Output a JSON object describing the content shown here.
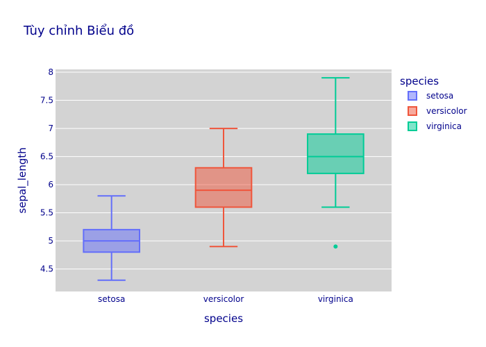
{
  "chart_data": {
    "type": "box",
    "title": "Tùy chỉnh Biểu đồ",
    "xlabel": "species",
    "ylabel": "sepal_length",
    "categories": [
      "setosa",
      "versicolor",
      "virginica"
    ],
    "ylim": [
      4.1,
      8.05
    ],
    "yticks": [
      4.5,
      5,
      5.5,
      6,
      6.5,
      7,
      7.5,
      8
    ],
    "ytick_labels": [
      "4.5",
      "5",
      "5.5",
      "6",
      "6.5",
      "7",
      "7.5",
      "8"
    ],
    "grid": true,
    "legend": {
      "title": "species",
      "placement": "right",
      "entries": [
        "setosa",
        "versicolor",
        "virginica"
      ]
    },
    "series": [
      {
        "name": "setosa",
        "color": "#636efa",
        "min": 4.3,
        "q1": 4.8,
        "median": 5.0,
        "q3": 5.2,
        "max": 5.8,
        "outliers": []
      },
      {
        "name": "versicolor",
        "color": "#ef553b",
        "min": 4.9,
        "q1": 5.6,
        "median": 5.9,
        "q3": 6.3,
        "max": 7.0,
        "outliers": []
      },
      {
        "name": "virginica",
        "color": "#00cc96",
        "min": 5.6,
        "q1": 6.2,
        "median": 6.5,
        "q3": 6.9,
        "max": 7.9,
        "outliers": [
          4.9
        ]
      }
    ],
    "colors": {
      "plot_background": "#d3d3d3",
      "text": "#00008b",
      "gridline": "#ffffff"
    }
  }
}
